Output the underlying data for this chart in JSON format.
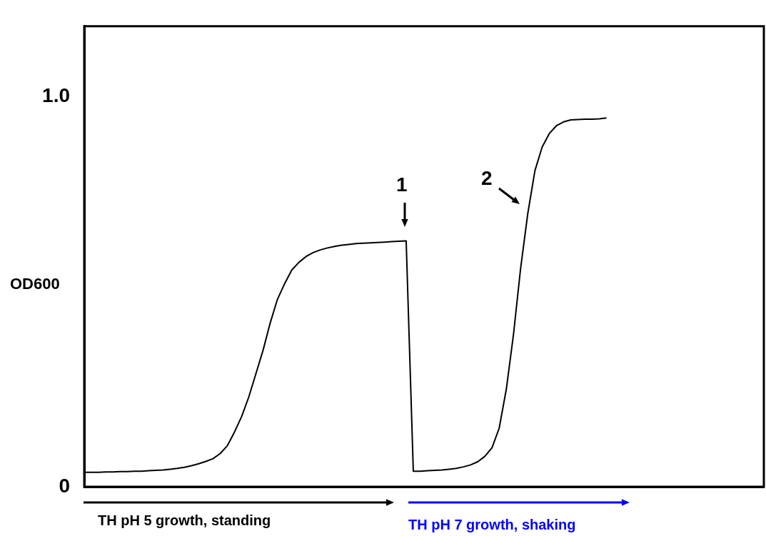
{
  "chart_data": {
    "type": "line",
    "ylabel": "OD600",
    "categories": [
      null,
      null,
      null,
      null,
      null,
      null,
      null,
      null,
      null,
      null,
      null,
      null,
      null,
      null,
      null,
      null,
      null,
      null,
      null,
      null,
      null,
      null,
      null,
      null,
      null,
      null,
      null,
      null,
      null,
      null,
      null,
      null,
      null,
      null,
      null,
      null,
      null,
      null,
      null,
      null,
      null,
      null,
      null,
      null,
      null,
      null,
      null,
      null,
      null,
      null,
      null,
      null,
      null,
      null,
      null,
      null,
      null,
      null,
      null,
      null,
      null,
      null,
      null,
      null,
      null,
      null,
      null,
      null,
      null,
      null,
      null,
      null,
      null,
      null,
      null,
      null,
      null,
      null,
      null,
      null,
      null,
      null,
      null,
      null,
      null,
      null,
      null,
      null,
      null,
      null,
      null,
      null,
      null,
      null,
      null,
      null
    ],
    "series": [
      {
        "color": "#000000",
        "values": [
          0.037,
          0.037,
          0.037,
          0.038,
          0.038,
          0.039,
          0.039,
          0.04,
          0.04,
          0.041,
          0.042,
          0.043,
          0.045,
          0.047,
          0.05,
          0.054,
          0.059,
          0.065,
          0.072,
          0.085,
          0.105,
          0.14,
          0.18,
          0.23,
          0.29,
          0.35,
          0.42,
          0.48,
          0.52,
          0.555,
          0.575,
          0.59,
          0.6,
          0.607,
          0.612,
          0.616,
          0.619,
          0.621,
          0.623,
          0.624,
          0.625,
          0.626,
          0.627,
          0.628,
          0.629,
          0.63,
          0.04,
          0.04,
          0.041,
          0.042,
          0.043,
          0.045,
          0.047,
          0.051,
          0.056,
          0.064,
          0.078,
          0.1,
          0.15,
          0.25,
          0.39,
          0.56,
          0.7,
          0.81,
          0.87,
          0.905,
          0.925,
          0.935,
          0.94,
          0.941,
          0.942,
          0.942,
          0.943,
          0.945,
          null,
          null,
          null,
          null,
          null,
          null,
          null,
          null,
          null,
          null,
          null,
          null,
          null,
          null,
          null,
          null,
          null,
          null,
          null,
          null,
          null,
          null
        ]
      }
    ],
    "ylim": [
      0,
      1.18
    ],
    "yticks": [
      0,
      {
        "value": 1,
        "label": "1.0"
      }
    ],
    "tick_labels": "y",
    "grid": false,
    "legend": false,
    "marker": "none",
    "line_style": "solid",
    "annotations": [
      "1",
      "2",
      "TH pH 5 growth, standing",
      "TH pH 7 growth, shaking"
    ]
  }
}
